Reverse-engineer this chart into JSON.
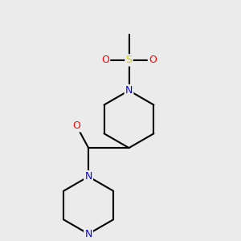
{
  "background_color": "#ebebeb",
  "bond_color": "#000000",
  "bond_width": 1.5,
  "atom_colors": {
    "N": "#0000ff",
    "O": "#ff0000",
    "S": "#cccc00",
    "C": "#000000"
  },
  "font_size": 9
}
